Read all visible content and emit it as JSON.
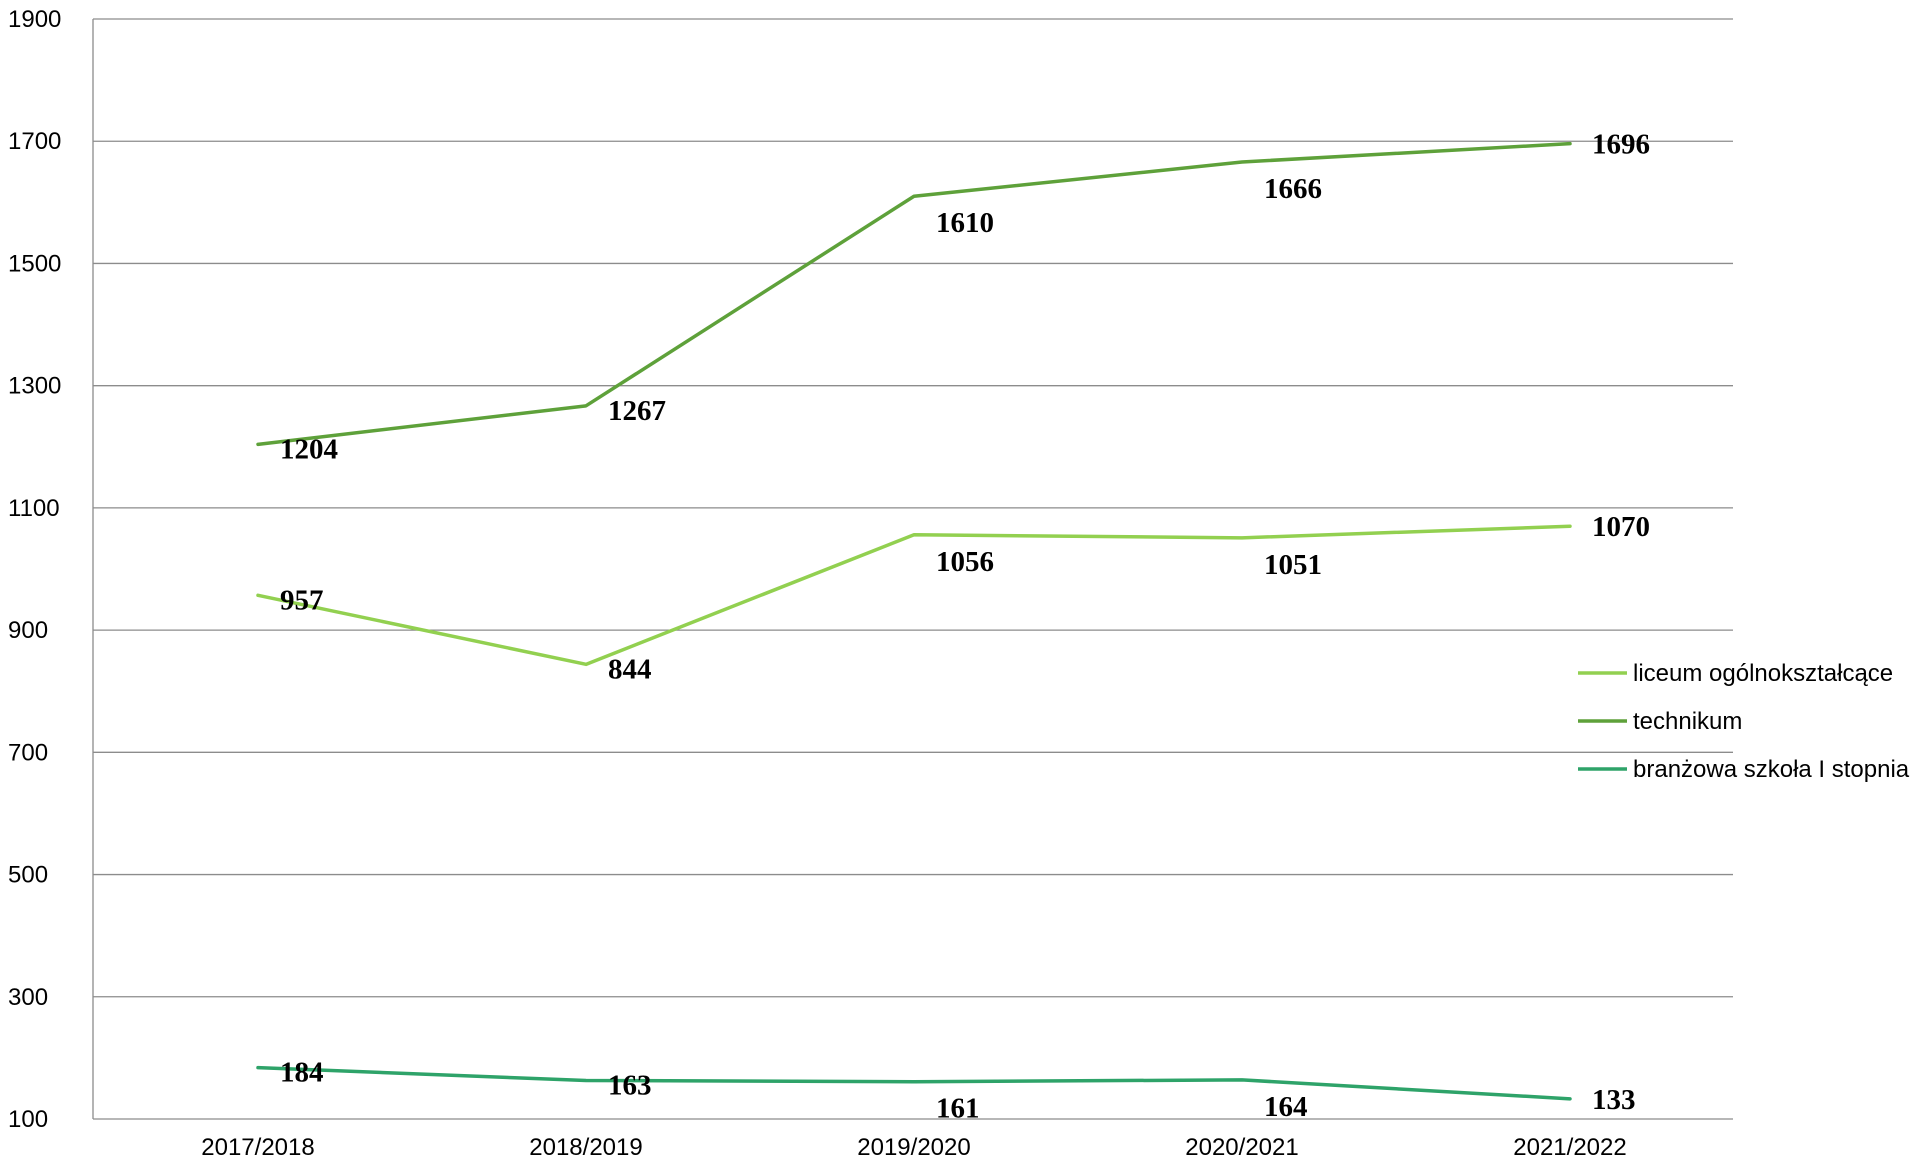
{
  "chart_data": {
    "type": "line",
    "title": "",
    "xlabel": "",
    "ylabel": "",
    "categories": [
      "2017/2018",
      "2018/2019",
      "2019/2020",
      "2020/2021",
      "2021/2022"
    ],
    "ylim": [
      100,
      1900
    ],
    "yticks": [
      100,
      300,
      500,
      700,
      900,
      1100,
      1300,
      1500,
      1700,
      1900
    ],
    "grid": true,
    "legend_position": "right",
    "series": [
      {
        "name": "liceum ogólnokształcące",
        "color": "#92D050",
        "values": [
          957,
          844,
          1056,
          1051,
          1070
        ]
      },
      {
        "name": "technikum",
        "color": "#5EA13A",
        "values": [
          1204,
          1267,
          1610,
          1666,
          1696
        ]
      },
      {
        "name": "branżowa szkoła I stopnia",
        "color": "#2EA369",
        "values": [
          184,
          163,
          161,
          164,
          133
        ]
      }
    ]
  }
}
